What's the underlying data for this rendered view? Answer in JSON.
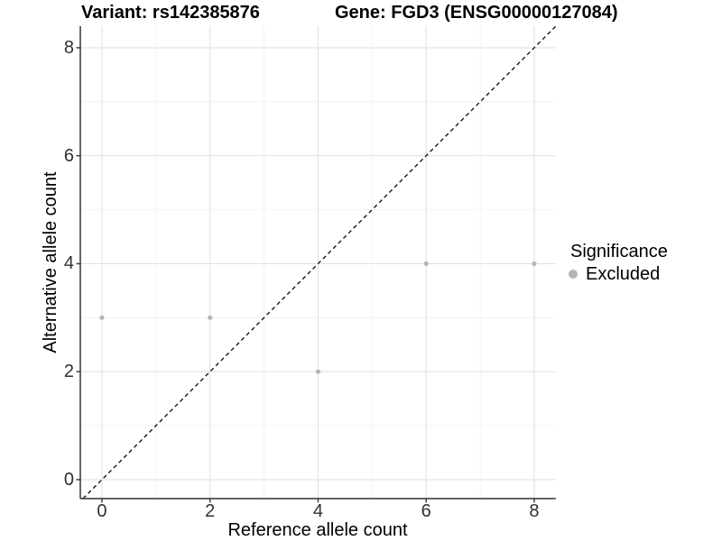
{
  "header": {
    "variant_title": "Variant: rs142385876",
    "gene_title": "Gene: FGD3 (ENSG00000127084)"
  },
  "legend": {
    "title": "Significance",
    "items": [
      {
        "label": "Excluded",
        "color": "#b5b5b5"
      }
    ]
  },
  "chart_data": {
    "type": "scatter",
    "title": "Variant: rs142385876 | Gene: FGD3 (ENSG00000127084)",
    "xlabel": "Reference allele count",
    "ylabel": "Alternative allele count",
    "xlim": [
      -0.4,
      8.4
    ],
    "ylim": [
      -0.35,
      8.4
    ],
    "x_ticks": [
      0,
      2,
      4,
      6,
      8
    ],
    "y_ticks": [
      0,
      2,
      4,
      6,
      8
    ],
    "minor_ticks": [
      1,
      3,
      5,
      7
    ],
    "grid": "major+minor",
    "legend_position": "right",
    "series": [
      {
        "name": "Excluded",
        "color": "#b5b5b5",
        "marker": "circle",
        "points": [
          [
            0,
            3
          ],
          [
            2,
            3
          ],
          [
            4,
            2
          ],
          [
            6,
            4
          ],
          [
            8,
            4
          ]
        ]
      }
    ],
    "reference_line": {
      "slope": 1,
      "intercept": 0,
      "style": "dashed",
      "color": "#111111"
    }
  },
  "colors": {
    "background": "#ffffff",
    "major_grid": "#e2e2e2",
    "minor_grid": "#f0f0f0",
    "axis": "#404040",
    "point": "#b5b5b5",
    "tick_text": "#303030",
    "text": "#000000"
  }
}
